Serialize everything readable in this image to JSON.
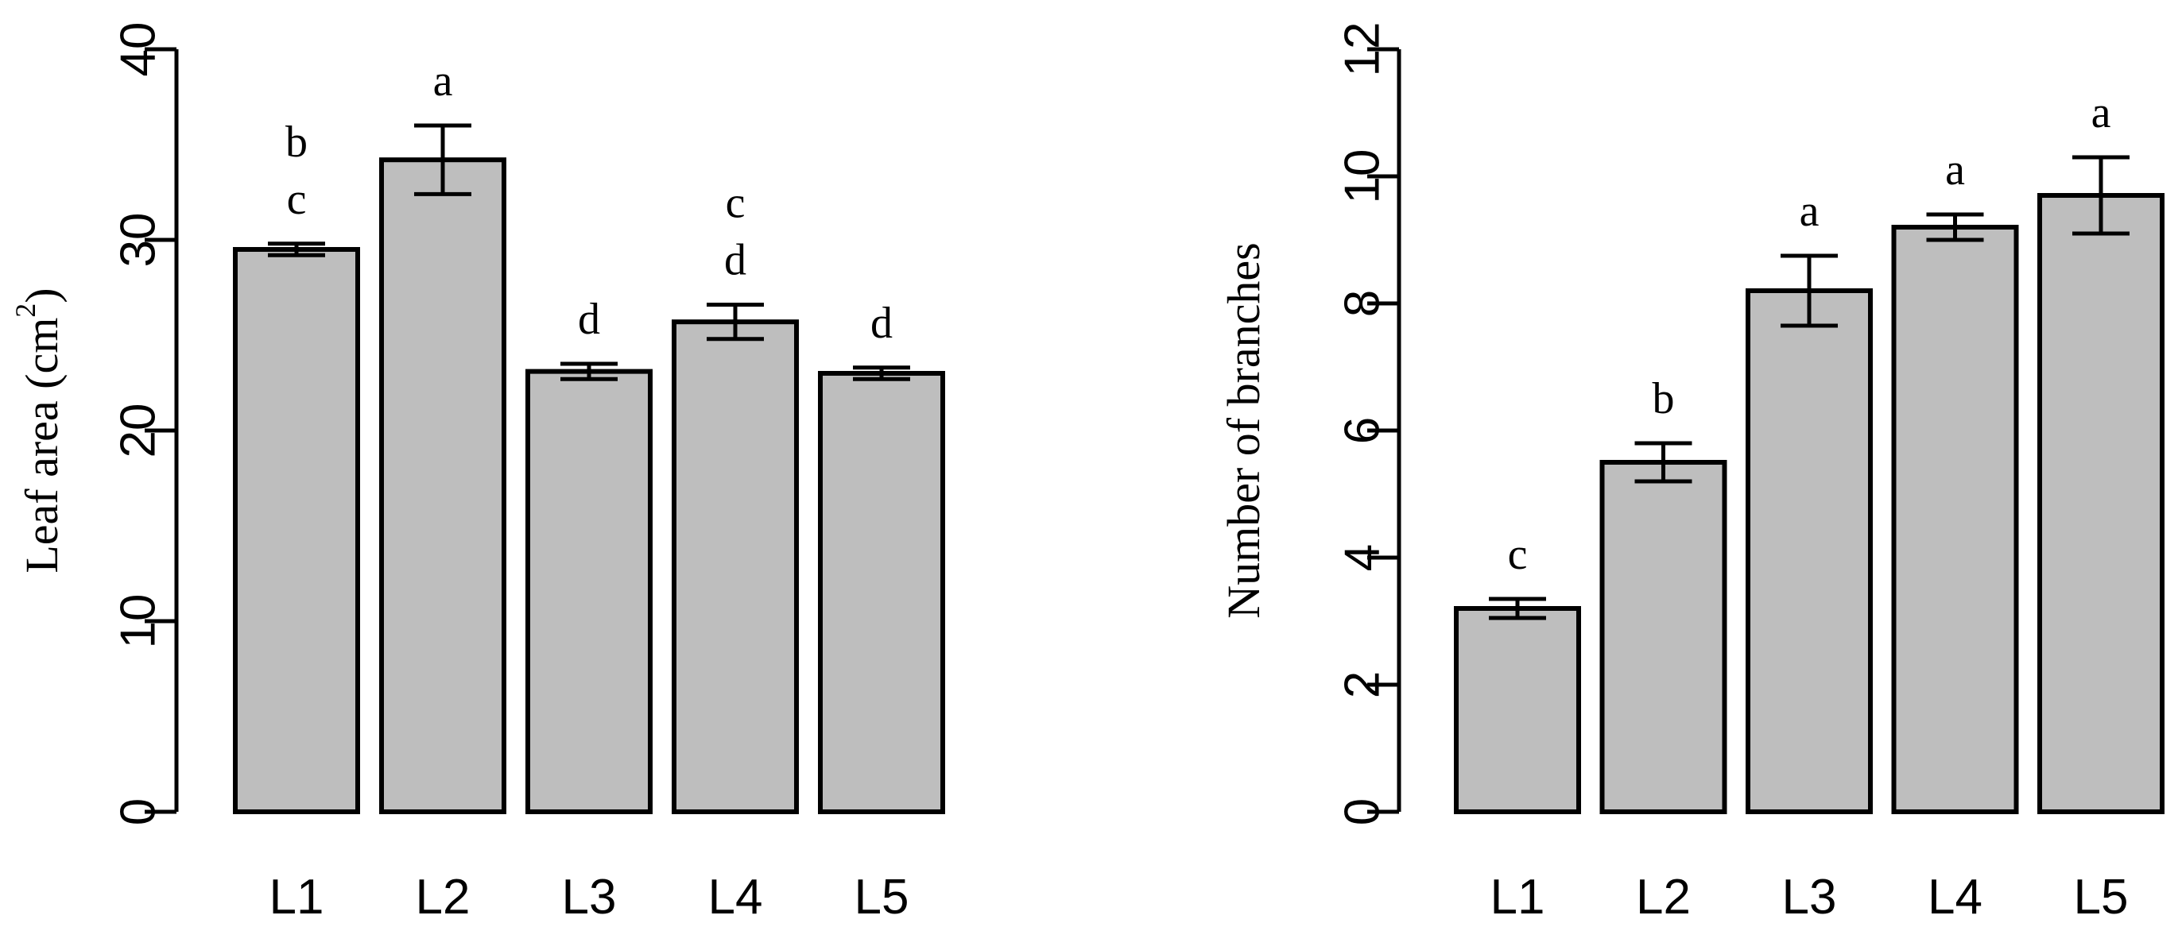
{
  "chart_data": [
    {
      "type": "bar",
      "categories": [
        "L1",
        "L2",
        "L3",
        "L4",
        "L5"
      ],
      "values": [
        29.5,
        34.2,
        23.1,
        25.7,
        23.0
      ],
      "error": [
        0.3,
        1.8,
        0.4,
        0.9,
        0.3
      ],
      "significance": [
        [
          "c",
          "b"
        ],
        [
          "a"
        ],
        [
          "d"
        ],
        [
          "d",
          "c"
        ],
        [
          "d"
        ]
      ],
      "ylabel": "Leaf area (cm",
      "ylabel_superscript": "2",
      "ylabel_suffix": ")",
      "ylim": [
        0,
        40
      ],
      "yticks": [
        0,
        10,
        20,
        30,
        40
      ],
      "bar_color": "#bebebe"
    },
    {
      "type": "bar",
      "categories": [
        "L1",
        "L2",
        "L3",
        "L4",
        "L5"
      ],
      "values": [
        3.2,
        5.5,
        8.2,
        9.2,
        9.7
      ],
      "error": [
        0.15,
        0.3,
        0.55,
        0.2,
        0.6
      ],
      "significance": [
        [
          "c"
        ],
        [
          "b"
        ],
        [
          "a"
        ],
        [
          "a"
        ],
        [
          "a"
        ]
      ],
      "ylabel": "Number of branches",
      "ylim": [
        0,
        12
      ],
      "yticks": [
        0,
        2,
        4,
        6,
        8,
        10,
        12
      ],
      "bar_color": "#bebebe"
    }
  ]
}
